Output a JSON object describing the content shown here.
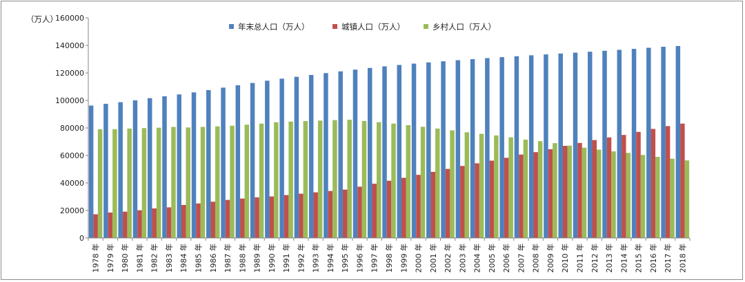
{
  "chart_data": {
    "type": "bar",
    "ylabel": "（万人）",
    "ylim": [
      0,
      160000
    ],
    "yticks": [
      0,
      20000,
      40000,
      60000,
      80000,
      100000,
      120000,
      140000,
      160000
    ],
    "grid": false,
    "legend_position": "top-center",
    "categories": [
      "1978 年",
      "1979 年",
      "1980 年",
      "1981 年",
      "1982 年",
      "1983 年",
      "1984 年",
      "1985 年",
      "1986 年",
      "1987 年",
      "1988 年",
      "1989 年",
      "1990 年",
      "1991 年",
      "1992 年",
      "1993 年",
      "1994 年",
      "1995 年",
      "1996 年",
      "1997 年",
      "1998 年",
      "1999 年",
      "2000 年",
      "2001 年",
      "2002 年",
      "2003 年",
      "2004 年",
      "2005 年",
      "2006 年",
      "2007 年",
      "2008 年",
      "2009 年",
      "2010 年",
      "2011 年",
      "2012 年",
      "2013 年",
      "2014 年",
      "2015 年",
      "2016 年",
      "2017 年",
      "2018 年"
    ],
    "series": [
      {
        "name": "年末总人口（万人）",
        "color": "#4f81bd",
        "values": [
          96259,
          97542,
          98705,
          100072,
          101654,
          103008,
          104357,
          105851,
          107507,
          109300,
          111026,
          112704,
          114333,
          115823,
          117171,
          118517,
          119850,
          121121,
          122389,
          123626,
          124761,
          125786,
          126743,
          127627,
          128453,
          129227,
          129988,
          130756,
          131448,
          132129,
          132802,
          133450,
          134091,
          134735,
          135404,
          136072,
          136782,
          137462,
          138271,
          139008,
          139538
        ]
      },
      {
        "name": "城镇人口（万人）",
        "color": "#c0504d",
        "values": [
          17245,
          18495,
          19140,
          20171,
          21480,
          22274,
          24017,
          25094,
          26366,
          27674,
          28661,
          29540,
          30195,
          31203,
          32175,
          33173,
          34169,
          35174,
          37304,
          39449,
          41608,
          43748,
          45906,
          48064,
          50212,
          52376,
          54283,
          56212,
          58288,
          60633,
          62403,
          64512,
          66978,
          69079,
          71182,
          73111,
          74916,
          77116,
          79298,
          81347,
          83137
        ]
      },
      {
        "name": "乡村人口（万人）",
        "color": "#9bbb59",
        "values": [
          79014,
          79047,
          79565,
          79901,
          80174,
          80734,
          80340,
          80757,
          81141,
          81626,
          82365,
          83164,
          84138,
          84620,
          84996,
          85344,
          85681,
          85947,
          85085,
          84177,
          83153,
          82038,
          80837,
          79563,
          78241,
          76851,
          75705,
          74544,
          73160,
          71496,
          70399,
          68938,
          67113,
          65656,
          64222,
          62961,
          61866,
          60346,
          58973,
          57661,
          56401
        ]
      }
    ]
  }
}
